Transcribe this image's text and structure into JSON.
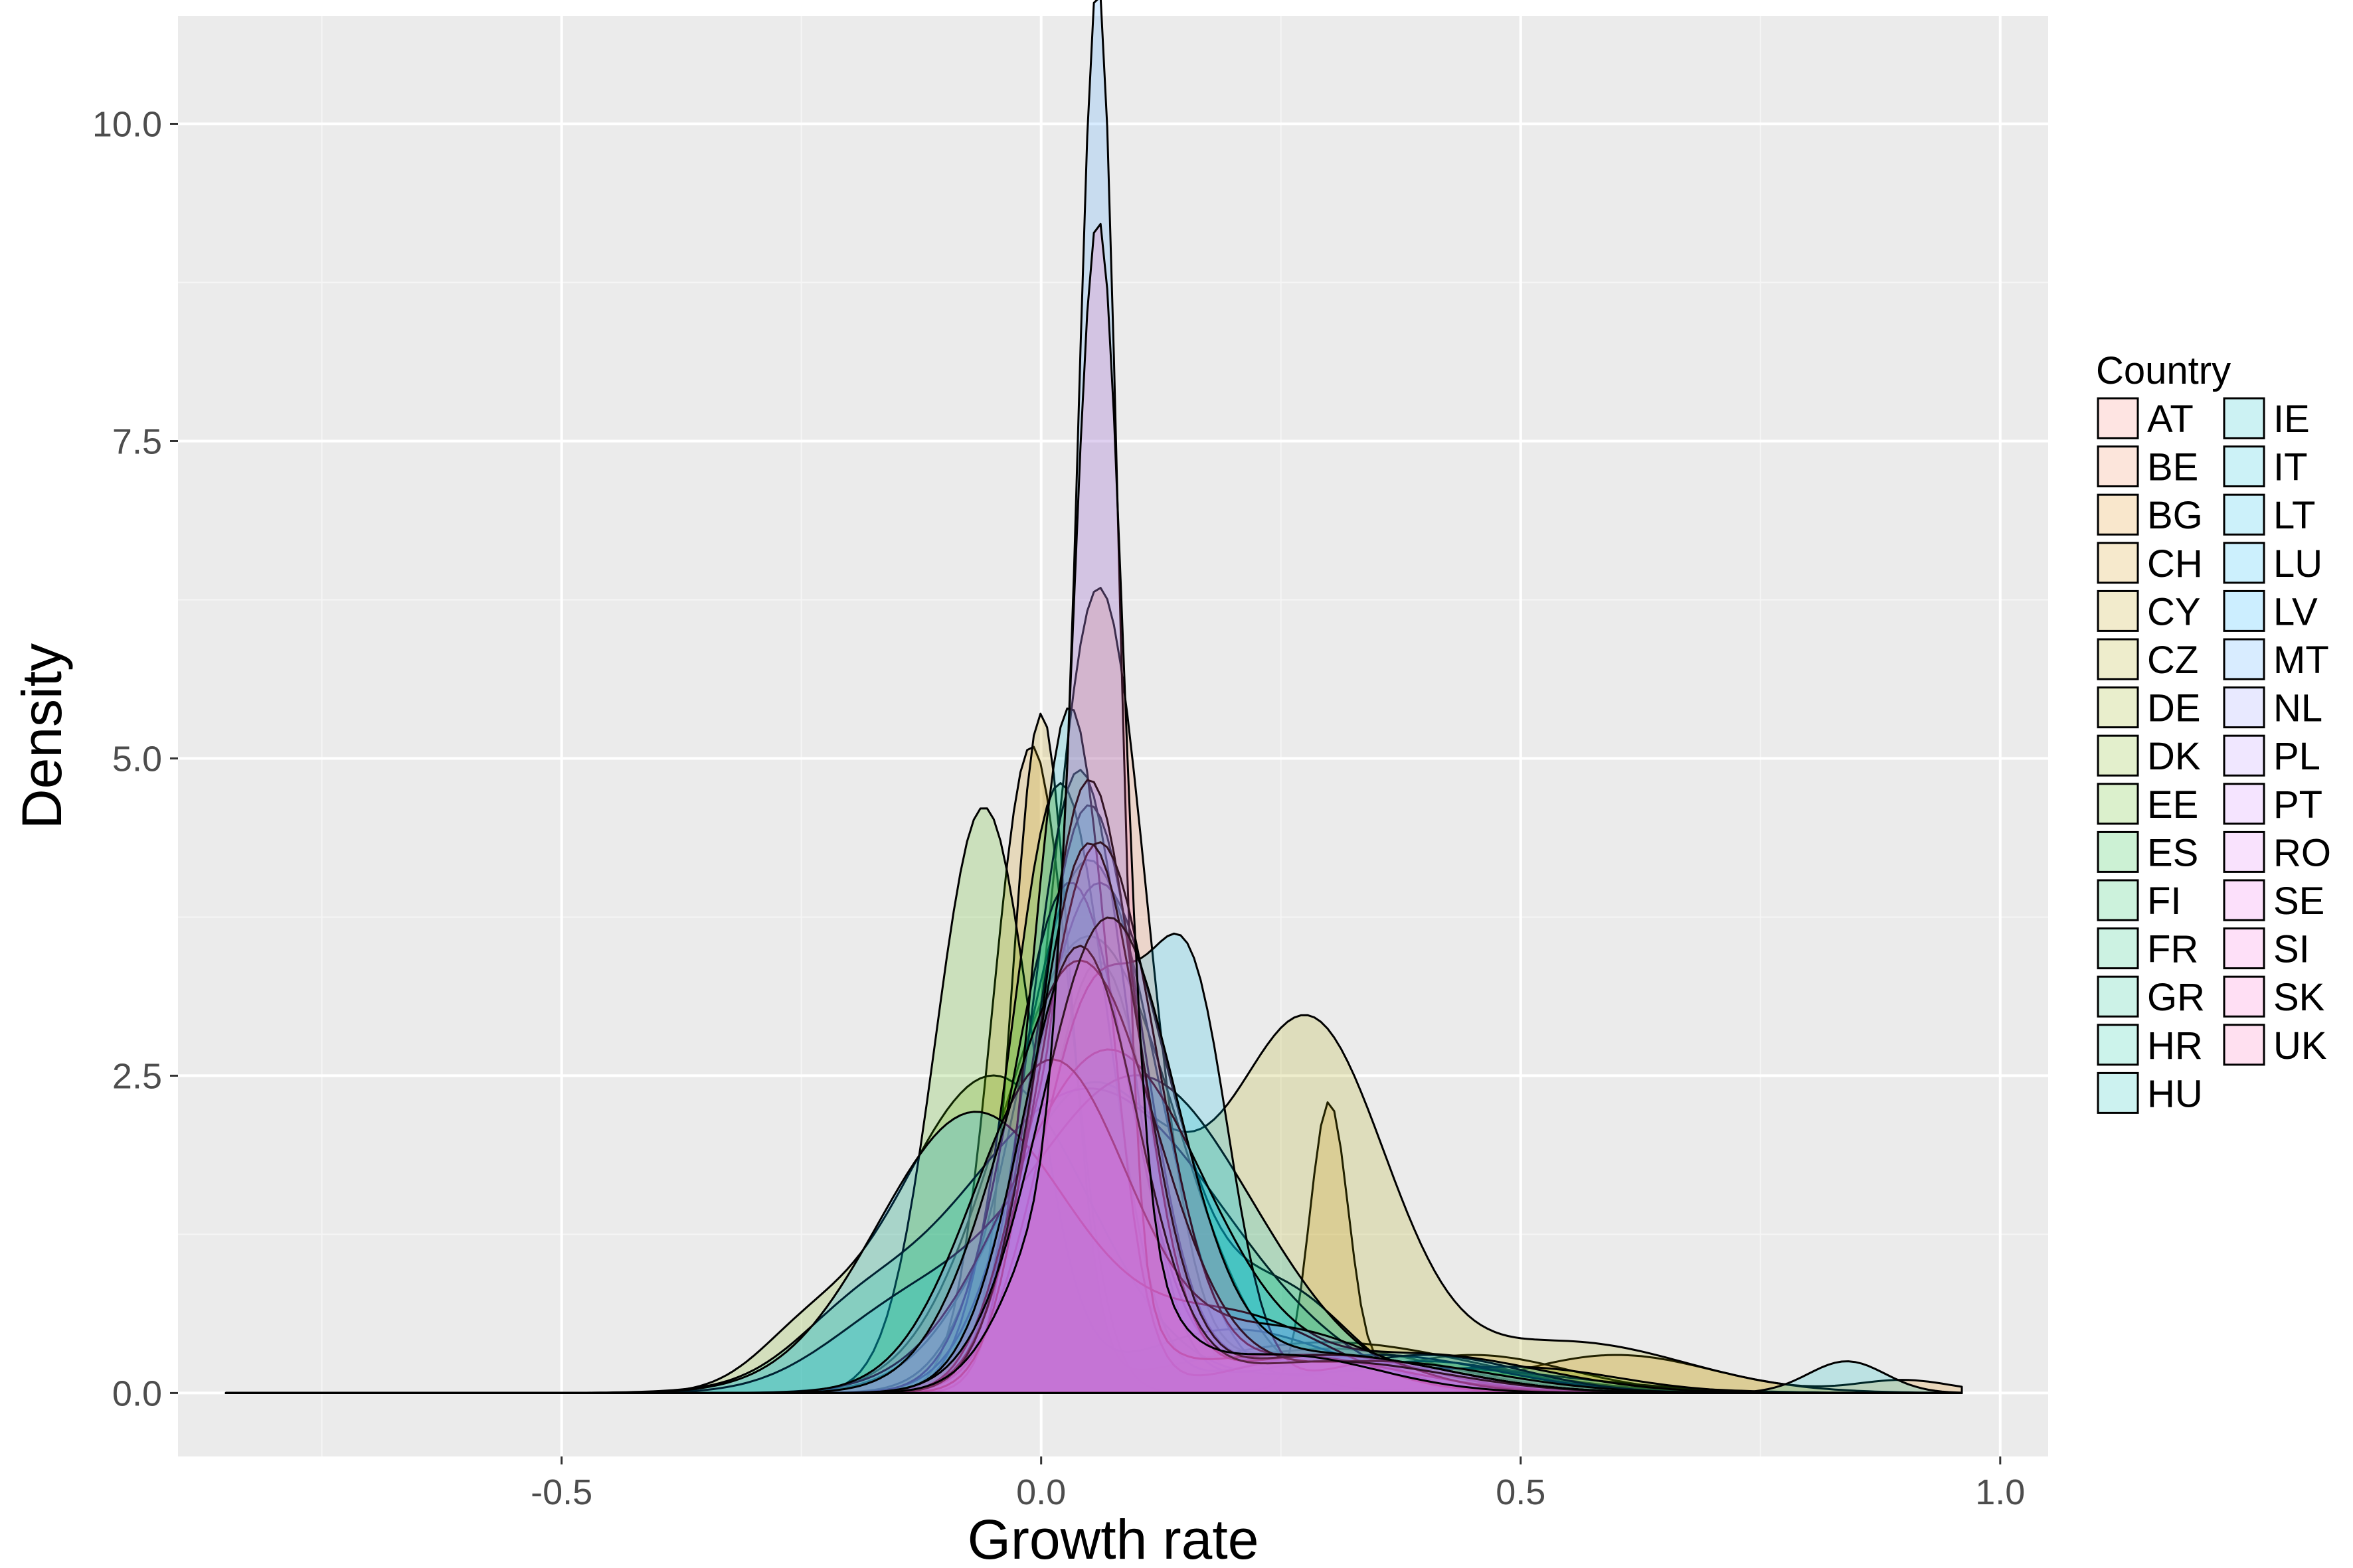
{
  "chart_data": {
    "type": "area",
    "subtype": "density",
    "title": "",
    "xlabel": "Growth rate",
    "ylabel": "Density",
    "xlim": [
      -0.9,
      1.05
    ],
    "ylim": [
      -0.5,
      10.85
    ],
    "x_ticks": [
      -0.5,
      0.0,
      0.5,
      1.0
    ],
    "x_tick_labels": [
      "-0.5",
      "0.0",
      "0.5",
      "1.0"
    ],
    "y_ticks": [
      0,
      2.5,
      5.0,
      7.5,
      10.0
    ],
    "y_tick_labels": [
      "0.0",
      "2.5",
      "5.0",
      "7.5",
      "10.0"
    ],
    "grid": true,
    "background": "#ebebeb",
    "legend": {
      "title": "Country",
      "position": "right",
      "columns": 2,
      "items": [
        {
          "label": "AT",
          "color": "#F8766D"
        },
        {
          "label": "BE",
          "color": "#EF7F49"
        },
        {
          "label": "BG",
          "color": "#E38900"
        },
        {
          "label": "CH",
          "color": "#D39200"
        },
        {
          "label": "CY",
          "color": "#C09B00"
        },
        {
          "label": "CZ",
          "color": "#ABA300"
        },
        {
          "label": "DE",
          "color": "#93AA00"
        },
        {
          "label": "DK",
          "color": "#75B000"
        },
        {
          "label": "EE",
          "color": "#49B500"
        },
        {
          "label": "ES",
          "color": "#00B929"
        },
        {
          "label": "FI",
          "color": "#00BC51"
        },
        {
          "label": "FR",
          "color": "#00BE6D"
        },
        {
          "label": "GR",
          "color": "#00C086"
        },
        {
          "label": "HR",
          "color": "#00C19C"
        },
        {
          "label": "HU",
          "color": "#00C0B2"
        },
        {
          "label": "IE",
          "color": "#00BFC4"
        },
        {
          "label": "IT",
          "color": "#00BCD6"
        },
        {
          "label": "LT",
          "color": "#00B8E5"
        },
        {
          "label": "LU",
          "color": "#00B2F3"
        },
        {
          "label": "LV",
          "color": "#00A9FF"
        },
        {
          "label": "MT",
          "color": "#3DA1FF"
        },
        {
          "label": "NL",
          "color": "#8B93FF"
        },
        {
          "label": "PL",
          "color": "#B385FF"
        },
        {
          "label": "PT",
          "color": "#CF78FF"
        },
        {
          "label": "RO",
          "color": "#E26EF7"
        },
        {
          "label": "SE",
          "color": "#F066EA"
        },
        {
          "label": "SI",
          "color": "#FA62DB"
        },
        {
          "label": "SK",
          "color": "#FF61C8"
        },
        {
          "label": "UK",
          "color": "#FF64B3"
        }
      ]
    },
    "x_range": [
      -0.85,
      0.96
    ],
    "series": [
      {
        "country": "AT",
        "peaks": [
          [
            0.06,
            3.4,
            0.055
          ]
        ],
        "tails": []
      },
      {
        "country": "BE",
        "peaks": [
          [
            0.06,
            6.3,
            0.05
          ]
        ],
        "tails": [
          [
            0.3,
            0.35,
            0.12
          ]
        ]
      },
      {
        "country": "BG",
        "peaks": [
          [
            0.05,
            3.6,
            0.09
          ]
        ],
        "tails": [
          [
            0.6,
            0.3,
            0.1
          ],
          [
            0.9,
            0.1,
            0.05
          ]
        ]
      },
      {
        "country": "CH",
        "peaks": [
          [
            -0.01,
            5.1,
            0.04
          ],
          [
            0.3,
            2.2,
            0.02
          ]
        ],
        "tails": [
          [
            0.45,
            0.3,
            0.1
          ]
        ]
      },
      {
        "country": "CY",
        "peaks": [
          [
            0.0,
            5.3,
            0.03
          ]
        ],
        "tails": [
          [
            0.3,
            0.4,
            0.15
          ]
        ]
      },
      {
        "country": "CZ",
        "peaks": [
          [
            0.05,
            2.4,
            0.09
          ],
          [
            0.28,
            2.85,
            0.08
          ]
        ],
        "tails": [
          [
            0.55,
            0.4,
            0.12
          ]
        ]
      },
      {
        "country": "DE",
        "peaks": [
          [
            0.05,
            4.2,
            0.07
          ]
        ],
        "tails": [
          [
            0.4,
            0.25,
            0.1
          ]
        ]
      },
      {
        "country": "DK",
        "peaks": [
          [
            -0.05,
            2.5,
            0.1
          ]
        ],
        "tails": [
          [
            -0.25,
            0.3,
            0.05
          ],
          [
            0.4,
            0.2,
            0.15
          ]
        ]
      },
      {
        "country": "EE",
        "peaks": [
          [
            -0.06,
            4.6,
            0.05
          ]
        ],
        "tails": [
          [
            0.2,
            0.5,
            0.1
          ],
          [
            0.5,
            0.2,
            0.1
          ]
        ]
      },
      {
        "country": "ES",
        "peaks": [
          [
            0.02,
            4.8,
            0.05
          ]
        ],
        "tails": [
          [
            0.3,
            0.3,
            0.1
          ]
        ]
      },
      {
        "country": "FI",
        "peaks": [
          [
            0.04,
            4.9,
            0.05
          ]
        ],
        "tails": [
          [
            0.35,
            0.3,
            0.12
          ]
        ]
      },
      {
        "country": "FR",
        "peaks": [
          [
            0.06,
            4.0,
            0.07
          ]
        ],
        "tails": [
          [
            0.25,
            0.8,
            0.07
          ]
        ]
      },
      {
        "country": "GR",
        "peaks": [
          [
            0.05,
            2.4,
            0.14
          ]
        ],
        "tails": [
          [
            -0.2,
            0.3,
            0.06
          ]
        ]
      },
      {
        "country": "HR",
        "peaks": [
          [
            0.03,
            4.0,
            0.06
          ]
        ],
        "tails": [
          [
            0.3,
            0.3,
            0.12
          ]
        ]
      },
      {
        "country": "HU",
        "peaks": [
          [
            0.05,
            4.6,
            0.055
          ]
        ],
        "tails": [
          [
            0.3,
            0.3,
            0.12
          ]
        ]
      },
      {
        "country": "IE",
        "peaks": [
          [
            0.1,
            2.5,
            0.12
          ]
        ],
        "tails": [
          [
            -0.15,
            0.5,
            0.08
          ],
          [
            0.84,
            0.25,
            0.04
          ]
        ]
      },
      {
        "country": "IT",
        "peaks": [
          [
            0.03,
            5.4,
            0.04
          ]
        ],
        "tails": [
          [
            0.3,
            0.3,
            0.1
          ]
        ]
      },
      {
        "country": "LT",
        "peaks": [
          [
            0.06,
            3.2,
            0.06
          ],
          [
            0.16,
            2.6,
            0.04
          ]
        ],
        "tails": [
          [
            0.4,
            0.3,
            0.1
          ]
        ]
      },
      {
        "country": "LU",
        "peaks": [
          [
            0.07,
            2.7,
            0.1
          ]
        ],
        "tails": [
          [
            0.4,
            0.3,
            0.12
          ]
        ]
      },
      {
        "country": "LV",
        "peaks": [
          [
            -0.07,
            2.2,
            0.1
          ]
        ],
        "tails": [
          [
            0.2,
            0.6,
            0.1
          ]
        ]
      },
      {
        "country": "MT",
        "peaks": [
          [
            0.06,
            9.2,
            0.02
          ],
          [
            0.02,
            2.5,
            0.05
          ]
        ],
        "tails": [
          [
            0.25,
            0.3,
            0.12
          ]
        ]
      },
      {
        "country": "NL",
        "peaks": [
          [
            0.05,
            4.8,
            0.05
          ]
        ],
        "tails": [
          [
            0.3,
            0.3,
            0.12
          ]
        ]
      },
      {
        "country": "PL",
        "peaks": [
          [
            0.06,
            4.3,
            0.06
          ]
        ],
        "tails": [
          [
            0.3,
            0.3,
            0.12
          ]
        ]
      },
      {
        "country": "PT",
        "peaks": [
          [
            0.01,
            2.6,
            0.08
          ]
        ],
        "tails": [
          [
            0.25,
            0.5,
            0.1
          ]
        ]
      },
      {
        "country": "RO",
        "peaks": [
          [
            0.04,
            3.4,
            0.08
          ]
        ],
        "tails": [
          [
            0.35,
            0.25,
            0.12
          ]
        ]
      },
      {
        "country": "SE",
        "peaks": [
          [
            0.05,
            4.3,
            0.055
          ]
        ],
        "tails": [
          [
            0.3,
            0.3,
            0.12
          ]
        ]
      },
      {
        "country": "SI",
        "peaks": [
          [
            0.04,
            3.5,
            0.06
          ]
        ],
        "tails": [
          [
            0.3,
            0.25,
            0.12
          ]
        ]
      },
      {
        "country": "SK",
        "peaks": [
          [
            0.07,
            3.7,
            0.07
          ]
        ],
        "tails": [
          [
            0.3,
            0.3,
            0.12
          ]
        ]
      },
      {
        "country": "UK",
        "peaks": [
          [
            0.06,
            7.5,
            0.025
          ],
          [
            0.04,
            1.8,
            0.06
          ]
        ],
        "tails": [
          [
            0.25,
            0.3,
            0.1
          ]
        ]
      }
    ]
  }
}
